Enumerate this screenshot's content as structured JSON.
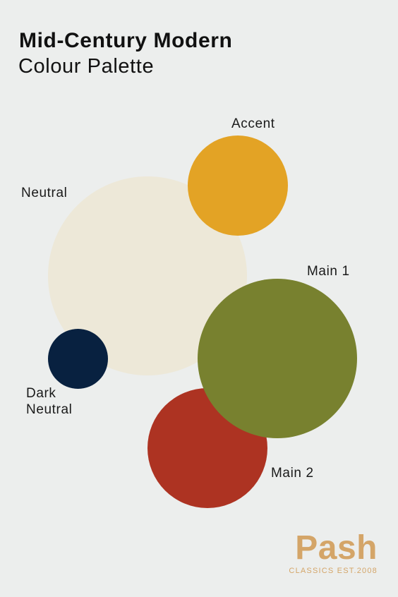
{
  "title": {
    "line1": "Mid-Century Modern",
    "line2": "Colour Palette"
  },
  "swatches": {
    "neutral": {
      "label": "Neutral",
      "color": "#ede8d8"
    },
    "accent": {
      "label": "Accent",
      "color": "#e3a325"
    },
    "main1": {
      "label": "Main 1",
      "color": "#78812f"
    },
    "dark_neutral": {
      "label_line1": "Dark",
      "label_line2": "Neutral",
      "color": "#082140"
    },
    "main2": {
      "label": "Main 2",
      "color": "#ad3322"
    }
  },
  "brand": {
    "name": "Pash",
    "tagline": "CLASSICS EST.2008",
    "color": "#d4a568"
  }
}
